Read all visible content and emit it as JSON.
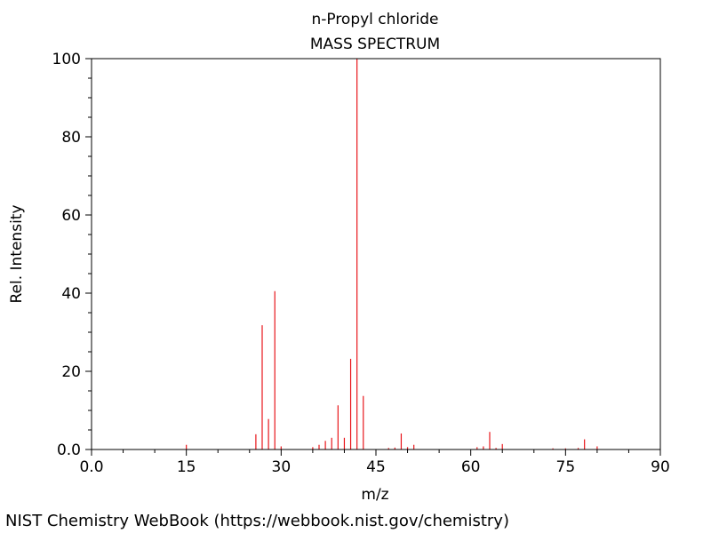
{
  "chart_data": {
    "type": "bar",
    "title": "n-Propyl chloride",
    "subtitle": "MASS SPECTRUM",
    "xlabel": "m/z",
    "ylabel": "Rel. Intensity",
    "xlim": [
      0,
      90
    ],
    "ylim": [
      0,
      100
    ],
    "x_ticks": [
      0,
      15,
      30,
      45,
      60,
      75,
      90
    ],
    "x_tick_labels": [
      "0.0",
      "15",
      "30",
      "45",
      "60",
      "75",
      "90"
    ],
    "y_ticks": [
      0,
      20,
      40,
      60,
      80,
      100
    ],
    "y_tick_labels": [
      "0.0",
      "20",
      "40",
      "60",
      "80",
      "100"
    ],
    "bar_color": "#e8161b",
    "grid": false,
    "peaks": [
      {
        "mz": 15,
        "intensity": 1.2
      },
      {
        "mz": 26,
        "intensity": 3.9
      },
      {
        "mz": 27,
        "intensity": 31.8
      },
      {
        "mz": 28,
        "intensity": 7.8
      },
      {
        "mz": 29,
        "intensity": 40.5
      },
      {
        "mz": 30,
        "intensity": 0.8
      },
      {
        "mz": 35,
        "intensity": 0.6
      },
      {
        "mz": 36,
        "intensity": 1.2
      },
      {
        "mz": 37,
        "intensity": 2.2
      },
      {
        "mz": 38,
        "intensity": 3.0
      },
      {
        "mz": 39,
        "intensity": 11.3
      },
      {
        "mz": 40,
        "intensity": 3.0
      },
      {
        "mz": 41,
        "intensity": 23.2
      },
      {
        "mz": 42,
        "intensity": 100
      },
      {
        "mz": 43,
        "intensity": 13.7
      },
      {
        "mz": 47,
        "intensity": 0.4
      },
      {
        "mz": 48,
        "intensity": 0.5
      },
      {
        "mz": 49,
        "intensity": 4.1
      },
      {
        "mz": 50,
        "intensity": 0.6
      },
      {
        "mz": 51,
        "intensity": 1.2
      },
      {
        "mz": 61,
        "intensity": 0.6
      },
      {
        "mz": 62,
        "intensity": 0.8
      },
      {
        "mz": 63,
        "intensity": 4.5
      },
      {
        "mz": 64,
        "intensity": 0.4
      },
      {
        "mz": 65,
        "intensity": 1.4
      },
      {
        "mz": 73,
        "intensity": 0.3
      },
      {
        "mz": 75,
        "intensity": 0.3
      },
      {
        "mz": 77,
        "intensity": 0.4
      },
      {
        "mz": 78,
        "intensity": 2.6
      },
      {
        "mz": 80,
        "intensity": 0.8
      }
    ]
  },
  "footer": {
    "source": "NIST Chemistry WebBook (https://webbook.nist.gov/chemistry)"
  }
}
